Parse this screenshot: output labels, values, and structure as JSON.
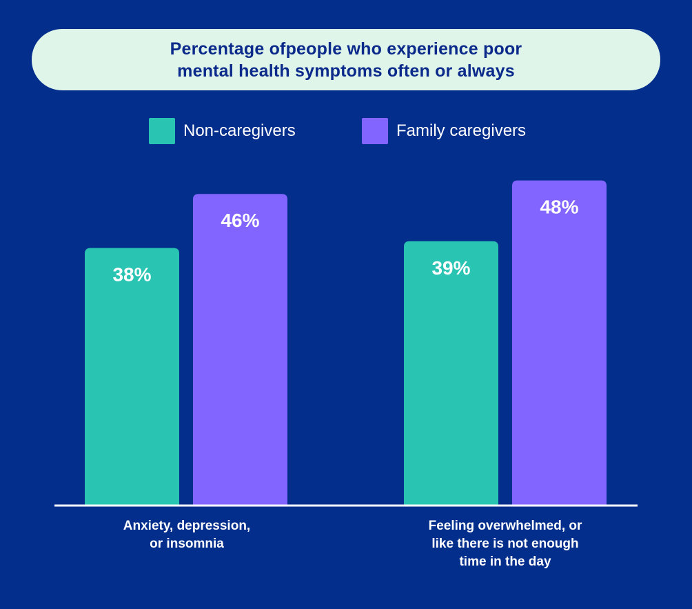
{
  "chart_data": {
    "type": "bar",
    "title": "Percentage ofpeople who experience poor mental health symptoms often or always",
    "title_lines": [
      "Percentage ofpeople who experience poor",
      "mental health symptoms often or always"
    ],
    "categories": [
      "Anxiety, depression, or insomnia",
      "Feeling overwhelmed, or like there is not enough time in the day"
    ],
    "category_lines": [
      [
        "Anxiety, depression,",
        "or insomnia"
      ],
      [
        "Feeling overwhelmed, or",
        "like there is not enough",
        "time in the day"
      ]
    ],
    "series": [
      {
        "name": "Non-caregivers",
        "color": "#2ac4b3",
        "values": [
          38,
          39
        ],
        "labels": [
          "38%",
          "39%"
        ]
      },
      {
        "name": "Family caregivers",
        "color": "#8264ff",
        "values": [
          46,
          48
        ],
        "labels": [
          "46%",
          "48%"
        ]
      }
    ],
    "ylim": [
      0,
      50
    ],
    "grid": false,
    "legend_position": "top-center",
    "xlabel": "",
    "ylabel": ""
  },
  "colors": {
    "background": "#032e8c",
    "title_pill": "#dff5ea",
    "title_text": "#0b2a8a",
    "axis": "#ffffff",
    "value_label": "#ffffff"
  }
}
